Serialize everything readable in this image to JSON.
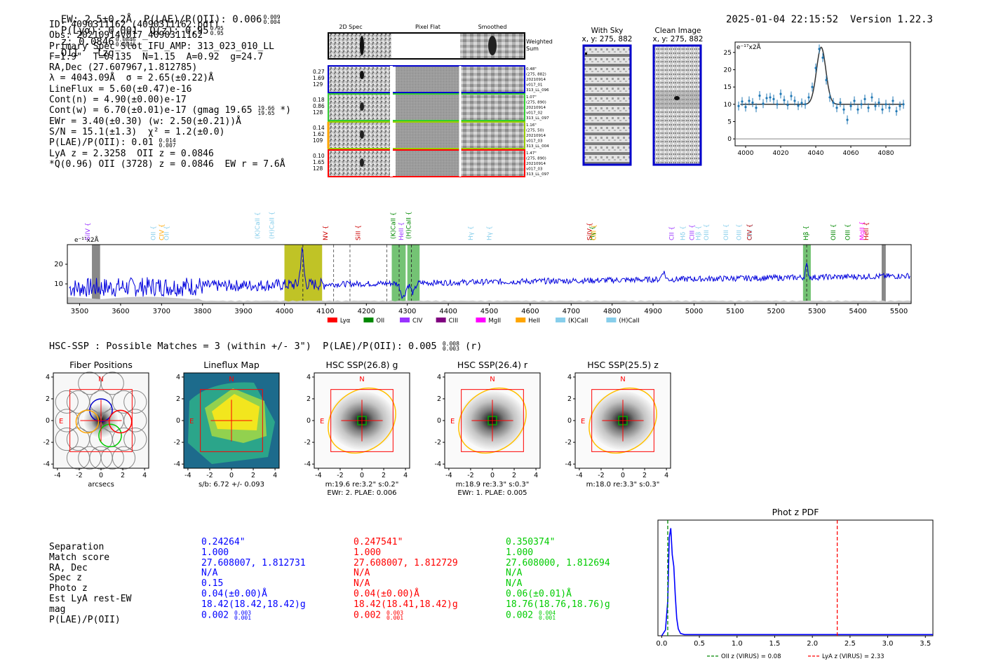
{
  "header": {
    "ew": "EW: 2.5±0.2Å  P(LAE)/P(OII): 0.006",
    "ew_sup": "0.009",
    "ew_sub": "0.004",
    "plya": "P(Lyα): 0.001",
    "qz": "Q(z): 0.95",
    "qz_sup": "0.95",
    "qz_sub": "0.95",
    "z": "z: 0.0846",
    "z_sup": "0.0846",
    "z_sub": "0.0846",
    "line": "OII",
    "tag": "lzg",
    "datetime": "2025-01-04 22:15:52",
    "version": "Version 1.22.3"
  },
  "info": {
    "id": "ID: 4090311162 (4090311162.pdf)",
    "obs": "Obs: 20210914v017_4090311162",
    "primary": "Primary Spec_Slot_IFU_AMP: 313_023_010_LL",
    "fiber": "F=1.9\"  T=0.135  N=1.15  A=0.92  g=24.7",
    "radec": "RA,Dec (27.607967,1.812785)",
    "lambda": "λ = 4043.09Å  σ = 2.65(±0.22)Å",
    "lineflux": "LineFlux = 5.60(±0.47)e-16",
    "contn": "Cont(n) = 4.90(±0.00)e-17",
    "contw": "Cont(w) = 6.70(±0.01)e-17 (gmag 19.65",
    "contw_sup": "19.66",
    "contw_sub": "19.65",
    "contw_end": " *)",
    "ewr": "EWr = 3.40(±0.30) (w: 2.50(±0.21))Å",
    "sn": "S/N = 15.1(±1.3)  χ² = 1.2(±0.0)",
    "plae": "P(LAE)/P(OII): 0.01",
    "plae_sup": "0.014",
    "plae_sub": "0.007",
    "lyaz": "LyA z = 2.3258  OII z = 0.0846",
    "qline": "*Q(0.96) OII (3728) z = 0.0846  EW r = 7.6Å"
  },
  "fiber_panel": {
    "col_2d": "2D Spec",
    "col_flat": "Pixel Flat",
    "col_smooth": "Smoothed",
    "weighted_sum": "Weighted\nSum",
    "rows": [
      {
        "w": "0.27",
        "v2": "1.69",
        "v3": "129",
        "stamp": "0.48\"\n(275, 882)\n20210914\nv017_01\n313_LL_096"
      },
      {
        "w": "0.18",
        "v2": "0.86",
        "v3": "128",
        "stamp": "1.07\"\n(275, 890)\n20210914\nv017_02\n313_LL_097"
      },
      {
        "w": "0.14",
        "v2": "1.62",
        "v3": "109",
        "stamp": "1.16\"\n(275, 50)\n20210914\nv017_03\n313_LL_004"
      },
      {
        "w": "0.10",
        "v2": "1.65",
        "v3": "128",
        "stamp": "1.47\"\n(275, 890)\n20210914\nv017_03\n313_LL_097"
      }
    ]
  },
  "cutouts": {
    "with_sky_title": "With Sky",
    "with_sky_xy": "x, y: 275, 882",
    "clean_title": "Clean Image",
    "clean_xy": "x, y: 275, 882"
  },
  "colors": {
    "blue": "#0000cc",
    "red": "#ff0000",
    "green": "#00cc00",
    "orange": "#ffa500",
    "olive": "#b5b800",
    "spec_green": "#4caf50",
    "fit_blue": "#1f77b4"
  },
  "chart_data": [
    {
      "name": "line-zoom",
      "type": "scatter",
      "ylabel": "e⁻¹⁷x2Å",
      "xlim": [
        3994,
        4094
      ],
      "ylim": [
        -2,
        28
      ],
      "xticks": [
        "4000",
        "4020",
        "4040",
        "4060",
        "4080"
      ],
      "yticks": [
        "0",
        "5",
        "10",
        "15",
        "20",
        "25"
      ],
      "fit": {
        "center": 4043.09,
        "sigma": 2.65,
        "amp": 16.5,
        "cont": 10
      },
      "x": [
        3996,
        3998,
        4000,
        4002,
        4004,
        4006,
        4008,
        4010,
        4012,
        4014,
        4016,
        4018,
        4020,
        4022,
        4024,
        4026,
        4028,
        4030,
        4032,
        4034,
        4036,
        4038,
        4040,
        4042,
        4044,
        4046,
        4048,
        4050,
        4052,
        4054,
        4056,
        4058,
        4060,
        4062,
        4064,
        4066,
        4068,
        4070,
        4072,
        4074,
        4076,
        4078,
        4080,
        4082,
        4084,
        4086,
        4088,
        4090
      ],
      "y": [
        9.5,
        10.8,
        9.2,
        11.0,
        10.5,
        9.0,
        12.5,
        10.2,
        11.8,
        12.0,
        11.5,
        10.0,
        13.0,
        11.2,
        9.8,
        12.4,
        11.0,
        9.6,
        10.4,
        10.0,
        12.0,
        15.0,
        20.5,
        26.0,
        23.5,
        17.0,
        12.0,
        10.5,
        9.0,
        10.5,
        8.5,
        5.5,
        9.5,
        11.0,
        8.5,
        10.0,
        11.5,
        9.0,
        12.0,
        9.5,
        10.5,
        8.5,
        10.0,
        9.0,
        11.0,
        8.0,
        9.5,
        10.0
      ]
    },
    {
      "name": "full-spectrum",
      "type": "line",
      "ylabel": "e⁻¹⁷x2Å",
      "xlim": [
        3470,
        5530
      ],
      "ylim": [
        0,
        30
      ],
      "xticks": [
        "3500",
        "3600",
        "3700",
        "3800",
        "3900",
        "4000",
        "4100",
        "4200",
        "4300",
        "4400",
        "4500",
        "4600",
        "4700",
        "4800",
        "4900",
        "5000",
        "5100",
        "5200",
        "5300",
        "5400",
        "5500"
      ],
      "yticks": [
        "10",
        "20"
      ],
      "line_labels": [
        {
          "label": "SiIV",
          "x": 3520,
          "c": "#9933ff"
        },
        {
          "label": "OII",
          "x": 3680,
          "c": "#87ceeb"
        },
        {
          "label": "CIV",
          "x": 3700,
          "c": "#ffa500"
        },
        {
          "label": "OII",
          "x": 3712,
          "c": "#87ceeb"
        },
        {
          "label": "(K)CaII",
          "x": 3934,
          "c": "#87ceeb"
        },
        {
          "label": "(H)CaII",
          "x": 3969,
          "c": "#87ceeb"
        },
        {
          "label": "NV",
          "x": 4100,
          "c": "#cc0000"
        },
        {
          "label": "SiII",
          "x": 4180,
          "c": "#cc0000"
        },
        {
          "label": "(K)CaII",
          "x": 4265,
          "c": "#008800"
        },
        {
          "label": "HeII",
          "x": 4285,
          "c": "#9933ff"
        },
        {
          "label": "(H)CaII",
          "x": 4303,
          "c": "#008800"
        },
        {
          "label": "Hγ",
          "x": 4455,
          "c": "#87ceeb"
        },
        {
          "label": "Hγ",
          "x": 4500,
          "c": "#87ceeb"
        },
        {
          "label": "SiIV",
          "x": 4745,
          "c": "#cc0000"
        },
        {
          "label": "Hγ",
          "x": 4752,
          "c": "#008800"
        },
        {
          "label": "CIII",
          "x": 4755,
          "c": "#ffa500"
        },
        {
          "label": "CII",
          "x": 4945,
          "c": "#9933ff"
        },
        {
          "label": "Hδ",
          "x": 4973,
          "c": "#87ceeb"
        },
        {
          "label": "CIII",
          "x": 4995,
          "c": "#9933ff"
        },
        {
          "label": "Hβ",
          "x": 5010,
          "c": "#87ceeb"
        },
        {
          "label": "OIII",
          "x": 5030,
          "c": "#87ceeb"
        },
        {
          "label": "OIII",
          "x": 5078,
          "c": "#87ceeb"
        },
        {
          "label": "OIII",
          "x": 5110,
          "c": "#87ceeb"
        },
        {
          "label": "OIII",
          "x": 5136,
          "c": "#87ceeb"
        },
        {
          "label": "CIV",
          "x": 5135,
          "c": "#cc0000"
        },
        {
          "label": "Hβ",
          "x": 5273,
          "c": "#008800"
        },
        {
          "label": "OIII",
          "x": 5340,
          "c": "#008800"
        },
        {
          "label": "OIII",
          "x": 5375,
          "c": "#008800"
        },
        {
          "label": "MgII",
          "x": 5410,
          "c": "#ff00ff"
        },
        {
          "label": "HeII",
          "x": 5420,
          "c": "#cc0000"
        }
      ],
      "legend": [
        {
          "label": "Lyα",
          "c": "#ff0000"
        },
        {
          "label": "OII",
          "c": "#008800"
        },
        {
          "label": "CIV",
          "c": "#9933ff"
        },
        {
          "label": "CIII",
          "c": "#800080"
        },
        {
          "label": "MgII",
          "c": "#ff00ff"
        },
        {
          "label": "HeII",
          "c": "#ffa500"
        },
        {
          "label": "(K)CaII",
          "c": "#87ceeb"
        },
        {
          "label": "(H)CaII",
          "c": "#87ceeb"
        }
      ]
    },
    {
      "name": "phot-z-pdf",
      "type": "line",
      "title": "Phot z PDF",
      "xlim": [
        -0.05,
        3.6
      ],
      "ylim": [
        0,
        1
      ],
      "xticks": [
        "0.0",
        "0.5",
        "1.0",
        "1.5",
        "2.0",
        "2.5",
        "3.0",
        "3.5"
      ],
      "x": [
        0.0,
        0.05,
        0.08,
        0.1,
        0.12,
        0.14,
        0.16,
        0.18,
        0.2,
        0.22,
        0.25,
        0.3,
        3.6
      ],
      "y": [
        0.0,
        0.05,
        0.3,
        0.85,
        0.93,
        0.7,
        0.6,
        0.35,
        0.15,
        0.06,
        0.02,
        0.01,
        0.01
      ],
      "oii_z": 0.08,
      "lya_z": 2.33,
      "legend_oii": "OII z (VIRUS) = 0.08",
      "legend_lya": "LyA z (VIRUS) = 2.33"
    }
  ],
  "hsc": {
    "summary": "HSC-SSP : Possible Matches = 3 (within +/- 3\")  P(LAE)/P(OII): 0.005",
    "summary_sup": "0.008",
    "summary_sub": "0.003",
    "summary_end": " (r)",
    "panels": [
      {
        "title": "Fiber Positions",
        "cap1": "arcsecs",
        "cap2": ""
      },
      {
        "title": "Lineflux Map",
        "cap1": "s/b: 6.72 +/- 0.093",
        "cap2": ""
      },
      {
        "title": "HSC SSP(26.8) g",
        "cap1": "m:19.6  re:3.2\"  s:0.2\"",
        "cap2": "EWr: 2. PLAE: 0.006"
      },
      {
        "title": "HSC SSP(26.4) r",
        "cap1": "m:18.9  re:3.3\"  s:0.3\"",
        "cap2": "EWr: 1. PLAE: 0.005"
      },
      {
        "title": "HSC SSP(25.5) z",
        "cap1": "m:18.0  re:3.3\"  s:0.3\"",
        "cap2": ""
      }
    ],
    "axis_ticks": [
      "-4",
      "-2",
      "0",
      "2",
      "4"
    ],
    "north": "N",
    "east": "E"
  },
  "matches": {
    "labels": [
      "Separation",
      "Match score",
      "RA, Dec",
      "Spec z",
      "Photo z",
      "Est LyA rest-EW",
      "mag",
      "P(LAE)/P(OII)"
    ],
    "columns": [
      {
        "sep": "0.24264\"",
        "score": "1.000",
        "radec": "27.608007, 1.812731",
        "specz": "N/A",
        "photz": "0.15",
        "ew": "0.04(±0.00)Å",
        "mag": "18.42(18.42,18.42)g",
        "plae": "0.002",
        "plae_sup": "0.003",
        "plae_sub": "0.001"
      },
      {
        "sep": "0.247541\"",
        "score": "1.000",
        "radec": "27.608007, 1.812729",
        "specz": "N/A",
        "photz": "N/A",
        "ew": "0.04(±0.00)Å",
        "mag": "18.42(18.41,18.42)g",
        "plae": "0.002",
        "plae_sup": "0.003",
        "plae_sub": "0.001"
      },
      {
        "sep": "0.350374\"",
        "score": "1.000",
        "radec": "27.608000, 1.812694",
        "specz": "N/A",
        "photz": "N/A",
        "ew": "0.06(±0.01)Å",
        "mag": "18.76(18.76,18.76)g",
        "plae": "0.002",
        "plae_sup": "0.004",
        "plae_sub": "0.001"
      }
    ]
  }
}
